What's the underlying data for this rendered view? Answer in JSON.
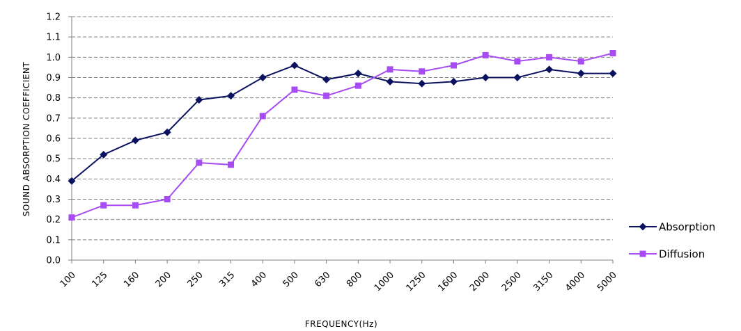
{
  "chart_data": {
    "type": "line",
    "xlabel": "FREQUENCY(Hz)",
    "ylabel": "SOUND ABSORPTION COEFFICIENT",
    "ylim": [
      0,
      1.2
    ],
    "y_ticks": [
      "0.0",
      "0.1",
      "0.2",
      "0.3",
      "0.4",
      "0.5",
      "0.6",
      "0.7",
      "0.8",
      "0.9",
      "1.0",
      "1.1",
      "1.2"
    ],
    "categories": [
      "100",
      "125",
      "160",
      "200",
      "250",
      "315",
      "400",
      "500",
      "630",
      "800",
      "1000",
      "1250",
      "1600",
      "2000",
      "2500",
      "3150",
      "4000",
      "5000"
    ],
    "grid": "horizontal dashed",
    "legend_position": "right",
    "series": [
      {
        "name": "Absorption",
        "color": "#0a1260",
        "marker": "diamond",
        "values": [
          0.39,
          0.52,
          0.59,
          0.63,
          0.79,
          0.81,
          0.9,
          0.96,
          0.89,
          0.92,
          0.88,
          0.87,
          0.88,
          0.9,
          0.9,
          0.94,
          0.92,
          0.92
        ]
      },
      {
        "name": "Diffusion",
        "color": "#a64cf2",
        "marker": "square",
        "values": [
          0.21,
          0.27,
          0.27,
          0.3,
          0.48,
          0.47,
          0.71,
          0.84,
          0.81,
          0.86,
          0.94,
          0.93,
          0.96,
          1.01,
          0.98,
          1.0,
          0.98,
          1.02
        ]
      }
    ]
  }
}
